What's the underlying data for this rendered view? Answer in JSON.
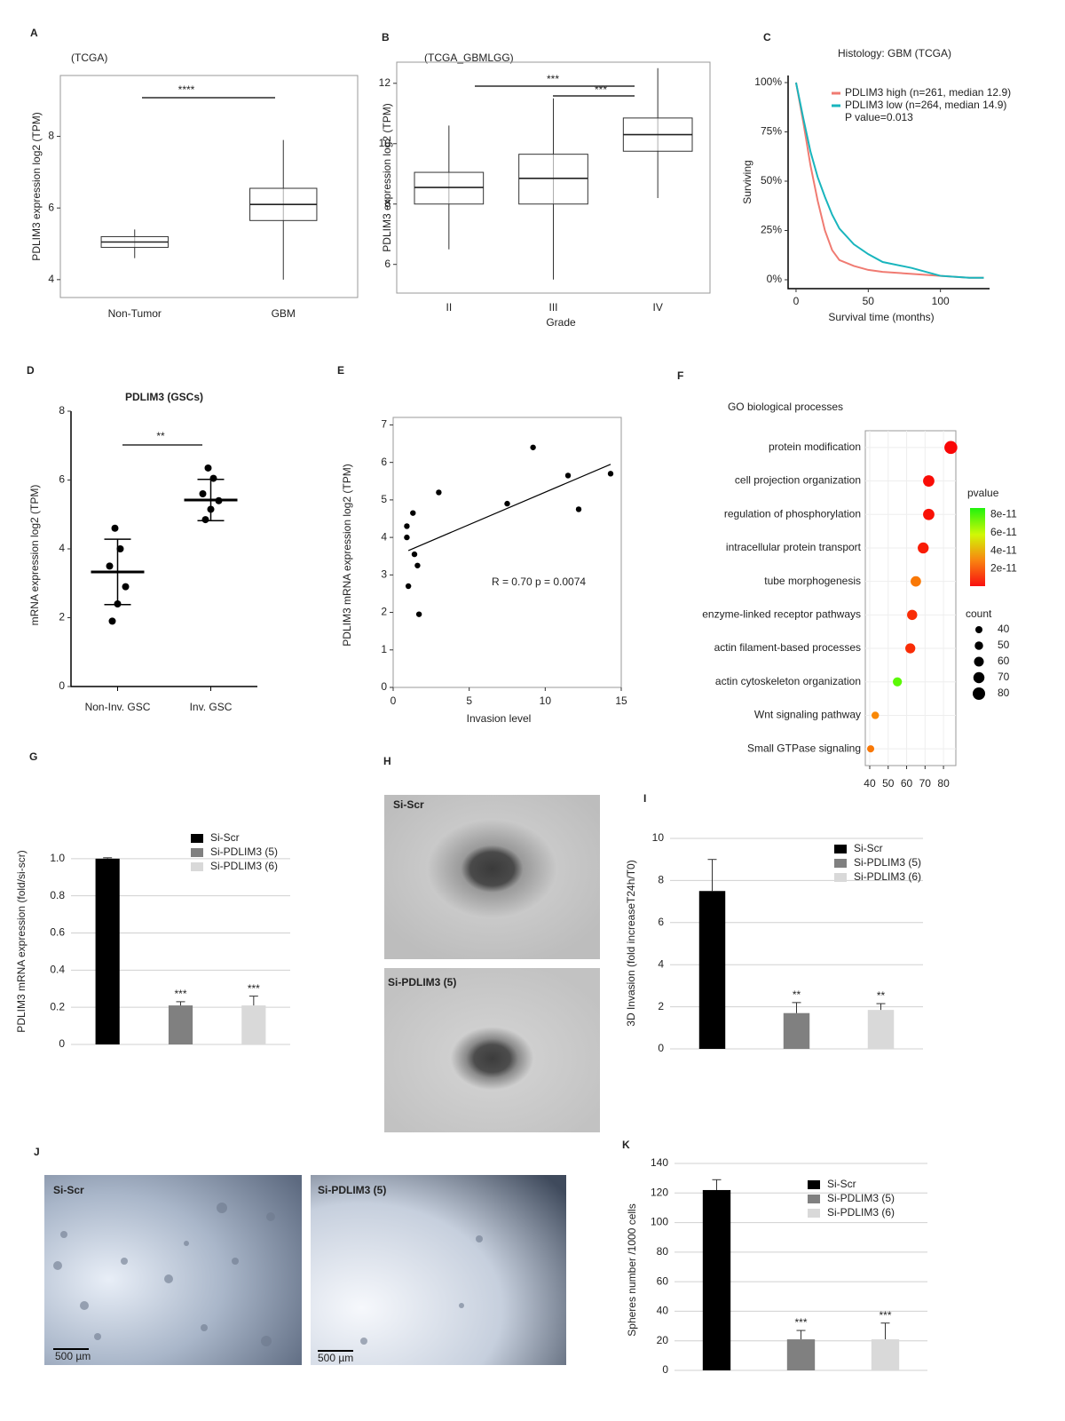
{
  "chart_data": [
    {
      "panel": "A",
      "type": "box",
      "title": "(TCGA)",
      "ylabel": "PDLIM3 expression  log2 (TPM)",
      "categories": [
        "Non-Tumor",
        "GBM"
      ],
      "boxes": [
        {
          "min": 4.6,
          "q1": 4.9,
          "median": 5.05,
          "q3": 5.2,
          "max": 5.4
        },
        {
          "min": 4.0,
          "q1": 5.65,
          "median": 6.1,
          "q3": 6.55,
          "max": 7.9
        }
      ],
      "ylim": [
        3.5,
        9.7
      ],
      "yticks": [
        4,
        6,
        8
      ],
      "annotations": [
        "****"
      ]
    },
    {
      "panel": "B",
      "type": "box",
      "title": "(TCGA_GBMLGG)",
      "ylabel": "PDLIM3 expression  log2 (TPM)",
      "xlabel": "Grade",
      "categories": [
        "II",
        "III",
        "IV"
      ],
      "boxes": [
        {
          "min": 6.5,
          "q1": 8.0,
          "median": 8.55,
          "q3": 9.05,
          "max": 10.6
        },
        {
          "min": 5.5,
          "q1": 8.0,
          "median": 8.85,
          "q3": 9.65,
          "max": 11.5
        },
        {
          "min": 8.2,
          "q1": 9.75,
          "median": 10.3,
          "q3": 10.85,
          "max": 12.5
        }
      ],
      "ylim": [
        5.05,
        12.7
      ],
      "yticks": [
        6,
        8,
        10,
        12
      ],
      "annotations": [
        "***",
        "***"
      ]
    },
    {
      "panel": "C",
      "type": "line",
      "title": "Histology: GBM (TCGA)",
      "ylabel": "Surviving",
      "xlabel": "Survival time (months)",
      "x": [
        0,
        5,
        10,
        15,
        20,
        25,
        30,
        40,
        50,
        60,
        80,
        100,
        120,
        130
      ],
      "series": [
        {
          "name": "PDLIM3 high (n=261, median 12.9)",
          "color": "#f07b72",
          "values": [
            100,
            80,
            58,
            40,
            25,
            15,
            10,
            7,
            5,
            4,
            3,
            2,
            1,
            1
          ]
        },
        {
          "name": "PDLIM3 low (n=264, median 14.9)",
          "color": "#19b5bd",
          "values": [
            100,
            82,
            65,
            52,
            42,
            33,
            26,
            18,
            13,
            9,
            6,
            2,
            1,
            1
          ]
        }
      ],
      "xlim": [
        -5.5,
        134
      ],
      "xticks": [
        0,
        50,
        100
      ],
      "ylim": [
        -4.5,
        103.6
      ],
      "yticks": [
        {
          "value": 0,
          "label": "0%"
        },
        {
          "value": 25,
          "label": "25%"
        },
        {
          "value": 50,
          "label": "50%"
        },
        {
          "value": 75,
          "label": "75%"
        },
        {
          "value": 100,
          "label": "100%"
        }
      ],
      "annotations": [
        "P value=0.013"
      ]
    },
    {
      "panel": "D",
      "type": "dot",
      "title": "PDLIM3 (GSCs)",
      "ylabel": "mRNA expression log2 (TPM)",
      "categories": [
        "Non-Inv. GSC",
        "Inv. GSC"
      ],
      "points": [
        [
          4.6,
          4.0,
          3.5,
          2.9,
          2.4,
          1.9
        ],
        [
          6.35,
          6.05,
          5.6,
          5.4,
          5.15,
          4.85
        ]
      ],
      "means": [
        3.33,
        5.42
      ],
      "sd": [
        0.95,
        0.6
      ],
      "ylim": [
        0,
        8
      ],
      "yticks": [
        0,
        2,
        4,
        6,
        8
      ],
      "annotations": [
        "**"
      ]
    },
    {
      "panel": "E",
      "type": "scatter",
      "ylabel": "PDLIM3 mRNA expression  log2 (TPM)",
      "xlabel": "Invasion level",
      "x": [
        0.9,
        0.9,
        1.3,
        1.4,
        1.6,
        1.0,
        1.7,
        3.0,
        7.5,
        9.2,
        11.5,
        12.2,
        14.3
      ],
      "values": [
        4.3,
        4.0,
        4.65,
        3.55,
        3.25,
        2.7,
        1.95,
        5.2,
        4.9,
        6.4,
        5.65,
        4.75,
        5.7
      ],
      "fit": {
        "x": [
          1,
          14.3
        ],
        "y": [
          3.65,
          5.95
        ]
      },
      "xlim": [
        0,
        15
      ],
      "xticks": [
        0,
        5,
        10,
        15
      ],
      "ylim": [
        0,
        7.2
      ],
      "yticks": [
        0,
        1,
        2,
        3,
        4,
        5,
        6,
        7
      ],
      "annotations": [
        "R = 0.70  p = 0.0074"
      ]
    },
    {
      "panel": "F",
      "type": "bubble",
      "title": "GO biological processes",
      "categories": [
        "protein modification",
        "cell projection organization",
        "regulation of phosphorylation",
        "intracellular protein transport",
        "tube morphogenesis",
        "enzyme-linked  receptor pathways",
        "actin filament-based processes",
        "actin cytoskeleton  organization",
        "Wnt signaling pathway",
        "Small GTPase  signaling"
      ],
      "values": [
        84,
        72,
        72,
        69,
        65,
        63,
        62,
        55,
        43,
        40.5
      ],
      "pvalues": [
        1e-12,
        2e-12,
        3e-12,
        5e-12,
        2.2e-11,
        8e-12,
        8e-12,
        7.5e-11,
        2.5e-11,
        2.2e-11
      ],
      "xlim": [
        37.6,
        86.7
      ],
      "xticks": [
        40,
        50,
        60,
        70,
        80
      ],
      "color_title": "pvalue",
      "colorlim": [
        1e-12,
        8.7e-11
      ],
      "colorticks": [
        {
          "value": 8e-11,
          "label": "8e-11"
        },
        {
          "value": 6e-11,
          "label": "6e-11"
        },
        {
          "value": 4e-11,
          "label": "4e-11"
        },
        {
          "value": 2e-11,
          "label": "2e-11"
        }
      ],
      "size_title": "count",
      "size_legend": [
        40,
        50,
        60,
        70,
        80
      ]
    },
    {
      "panel": "G",
      "type": "bar",
      "ylabel": "PDLIM3 mRNA expression  (fold/si-scr)",
      "series": [
        {
          "name": "Si-Scr",
          "color": "#000000",
          "values": [
            1.0
          ],
          "errors": [
            0.005
          ]
        },
        {
          "name": "Si-PDLIM3 (5)",
          "color": "#808080",
          "values": [
            0.21
          ],
          "errors": [
            0.02
          ]
        },
        {
          "name": "Si-PDLIM3 (6)",
          "color": "#d9d9d9",
          "values": [
            0.21
          ],
          "errors": [
            0.05
          ]
        }
      ],
      "ylim": [
        0,
        1.2
      ],
      "yticks": [
        0,
        0.2,
        0.4,
        0.6,
        0.8,
        {
          "value": 1.0,
          "label": "1.0"
        }
      ],
      "annotations": [
        "***",
        "***"
      ]
    },
    {
      "panel": "I",
      "type": "bar",
      "ylabel": "3D Invasion (fold increaseT24h/T0)",
      "series": [
        {
          "name": "Si-Scr",
          "color": "#000000",
          "values": [
            7.5
          ],
          "errors": [
            1.5
          ]
        },
        {
          "name": "Si-PDLIM3 (5)",
          "color": "#808080",
          "values": [
            1.7
          ],
          "errors": [
            0.5
          ]
        },
        {
          "name": "Si-PDLIM3 (6)",
          "color": "#d9d9d9",
          "values": [
            1.85
          ],
          "errors": [
            0.3
          ]
        }
      ],
      "ylim": [
        0,
        10
      ],
      "yticks": [
        0,
        2,
        4,
        6,
        8,
        10
      ],
      "annotations": [
        "**",
        "**"
      ]
    },
    {
      "panel": "K",
      "type": "bar",
      "ylabel": "Spheres  number /1000  cells",
      "series": [
        {
          "name": "Si-Scr",
          "color": "#000000",
          "values": [
            122
          ],
          "errors": [
            7
          ]
        },
        {
          "name": "Si-PDLIM3 (5)",
          "color": "#808080",
          "values": [
            21
          ],
          "errors": [
            6
          ]
        },
        {
          "name": "Si-PDLIM3 (6)",
          "color": "#d9d9d9",
          "values": [
            21
          ],
          "errors": [
            11
          ]
        }
      ],
      "ylim": [
        0,
        140
      ],
      "yticks": [
        0,
        20,
        40,
        60,
        80,
        100,
        120,
        140
      ],
      "annotations": [
        "***",
        "***"
      ]
    }
  ],
  "images": [
    {
      "panel": "H",
      "labels": [
        "Si-Scr",
        "Si-PDLIM3 (5)"
      ]
    },
    {
      "panel": "J",
      "labels": [
        "Si-Scr",
        "Si-PDLIM3 (5)"
      ],
      "scale_bar": "500 µm"
    }
  ]
}
